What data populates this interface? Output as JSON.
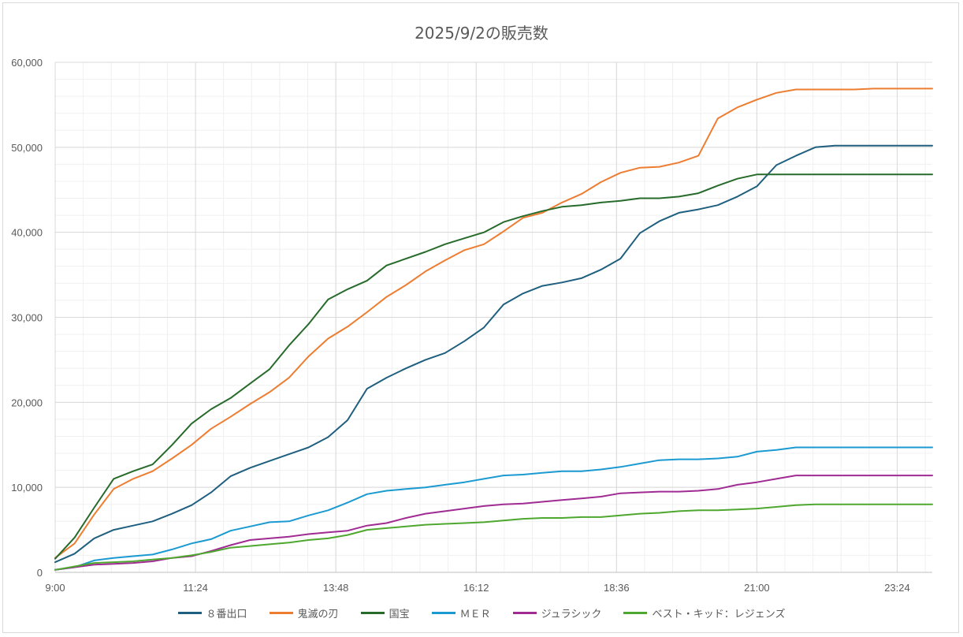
{
  "chart_data": {
    "type": "line",
    "title": "2025/9/2の販売数",
    "xlabel": "",
    "ylabel": "",
    "ylim": [
      0,
      60000
    ],
    "yticks": [
      0,
      10000,
      20000,
      30000,
      40000,
      50000,
      60000
    ],
    "ytick_labels": [
      "0",
      "10,000",
      "20,000",
      "30,000",
      "40,000",
      "50,000",
      "60,000"
    ],
    "xlim": [
      "9:00",
      "24:00"
    ],
    "xtick_labels": [
      "9:00",
      "11:24",
      "13:48",
      "16:12",
      "18:36",
      "21:00",
      "23:24"
    ],
    "x": [
      "9:00",
      "9:20",
      "9:40",
      "10:00",
      "10:20",
      "10:40",
      "11:00",
      "11:20",
      "11:40",
      "12:00",
      "12:20",
      "12:40",
      "13:00",
      "13:20",
      "13:40",
      "14:00",
      "14:20",
      "14:40",
      "15:00",
      "15:20",
      "15:40",
      "16:00",
      "16:20",
      "16:40",
      "17:00",
      "17:20",
      "17:40",
      "18:00",
      "18:20",
      "18:40",
      "19:00",
      "19:20",
      "19:40",
      "20:00",
      "20:20",
      "20:40",
      "21:00",
      "21:20",
      "21:40",
      "22:00",
      "22:20",
      "22:40",
      "23:00",
      "23:20",
      "23:40",
      "24:00"
    ],
    "grid": true,
    "legend_position": "bottom",
    "series": [
      {
        "name": "８番出口",
        "color": "#1f5f7f",
        "values": [
          1200,
          2200,
          4000,
          5000,
          5500,
          6000,
          6900,
          7900,
          9400,
          11300,
          12300,
          13100,
          13900,
          14700,
          15900,
          17900,
          21600,
          22900,
          24000,
          25000,
          25800,
          27200,
          28800,
          31500,
          32800,
          33700,
          34100,
          34600,
          35600,
          36900,
          39900,
          41300,
          42300,
          42700,
          43200,
          44200,
          45400,
          47900,
          49000,
          50000,
          50200,
          50200,
          50200,
          50200,
          50200,
          50200
        ]
      },
      {
        "name": "鬼滅の刃",
        "color": "#ed7d31",
        "values": [
          1700,
          3400,
          6800,
          9800,
          11000,
          11900,
          13400,
          15000,
          16900,
          18300,
          19800,
          21200,
          22900,
          25400,
          27500,
          28900,
          30600,
          32400,
          33800,
          35400,
          36700,
          37900,
          38600,
          40100,
          41700,
          42300,
          43500,
          44500,
          45900,
          47000,
          47600,
          47700,
          48200,
          49000,
          53400,
          54700,
          55600,
          56400,
          56800,
          56800,
          56800,
          56800,
          56900,
          56900,
          56900,
          56900
        ]
      },
      {
        "name": "国宝",
        "color": "#276b2b",
        "values": [
          1600,
          4100,
          7600,
          11000,
          11900,
          12700,
          15000,
          17500,
          19200,
          20500,
          22200,
          23900,
          26700,
          29200,
          32100,
          33300,
          34300,
          36100,
          36900,
          37700,
          38600,
          39300,
          40000,
          41200,
          41900,
          42500,
          43000,
          43200,
          43500,
          43700,
          44000,
          44000,
          44200,
          44600,
          45500,
          46300,
          46800,
          46800,
          46800,
          46800,
          46800,
          46800,
          46800,
          46800,
          46800,
          46800
        ]
      },
      {
        "name": "ＭＥＲ",
        "color": "#1b9ad2",
        "values": [
          300,
          600,
          1400,
          1700,
          1900,
          2100,
          2700,
          3400,
          3900,
          4900,
          5400,
          5900,
          6000,
          6700,
          7300,
          8200,
          9200,
          9600,
          9800,
          10000,
          10300,
          10600,
          11000,
          11400,
          11500,
          11700,
          11900,
          11900,
          12100,
          12400,
          12800,
          13200,
          13300,
          13300,
          13400,
          13600,
          14200,
          14400,
          14700,
          14700,
          14700,
          14700,
          14700,
          14700,
          14700,
          14700
        ]
      },
      {
        "name": "ジュラシック",
        "color": "#a02b93",
        "values": [
          300,
          600,
          900,
          1000,
          1100,
          1300,
          1700,
          1900,
          2500,
          3200,
          3800,
          4000,
          4200,
          4500,
          4700,
          4900,
          5500,
          5800,
          6400,
          6900,
          7200,
          7500,
          7800,
          8000,
          8100,
          8300,
          8500,
          8700,
          8900,
          9300,
          9400,
          9500,
          9500,
          9600,
          9800,
          10300,
          10600,
          11000,
          11400,
          11400,
          11400,
          11400,
          11400,
          11400,
          11400,
          11400
        ]
      },
      {
        "name": "ベスト・キッド：レジェンズ",
        "color": "#4ea72e",
        "values": [
          300,
          700,
          1100,
          1200,
          1300,
          1500,
          1700,
          2000,
          2400,
          2900,
          3100,
          3300,
          3500,
          3800,
          4000,
          4400,
          5000,
          5200,
          5400,
          5600,
          5700,
          5800,
          5900,
          6100,
          6300,
          6400,
          6400,
          6500,
          6500,
          6700,
          6900,
          7000,
          7200,
          7300,
          7300,
          7400,
          7500,
          7700,
          7900,
          8000,
          8000,
          8000,
          8000,
          8000,
          8000,
          8000
        ]
      }
    ]
  }
}
